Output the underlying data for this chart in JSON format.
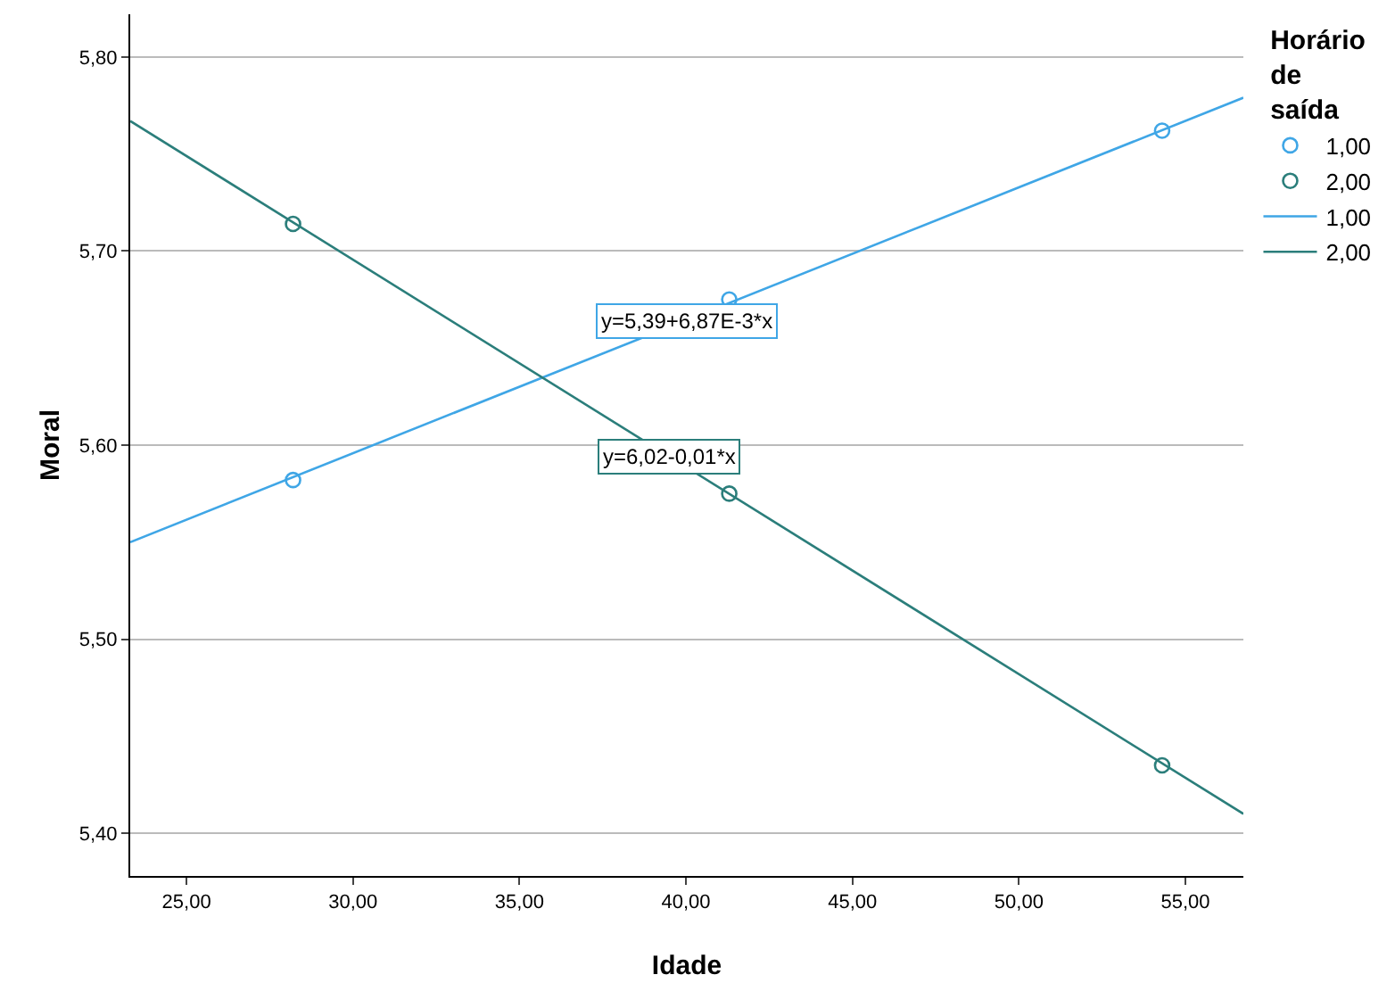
{
  "chart_data": {
    "type": "scatter",
    "xlabel": "Idade",
    "ylabel": "Moral",
    "legend_title": "Horário de saída",
    "xlim": [
      23.31,
      56.74
    ],
    "ylim": [
      5.378,
      5.822
    ],
    "xticks": [
      {
        "value": 25,
        "label": "25,00"
      },
      {
        "value": 30,
        "label": "30,00"
      },
      {
        "value": 35,
        "label": "35,00"
      },
      {
        "value": 40,
        "label": "40,00"
      },
      {
        "value": 45,
        "label": "45,00"
      },
      {
        "value": 50,
        "label": "50,00"
      },
      {
        "value": 55,
        "label": "55,00"
      }
    ],
    "yticks": [
      {
        "value": 5.4,
        "label": "5,40"
      },
      {
        "value": 5.5,
        "label": "5,50"
      },
      {
        "value": 5.6,
        "label": "5,60"
      },
      {
        "value": 5.7,
        "label": "5,70"
      },
      {
        "value": 5.8,
        "label": "5,80"
      }
    ],
    "grid": "y",
    "legend": "top right",
    "series": [
      {
        "name": "1,00",
        "type": "scatter",
        "marker": "circle",
        "color": "#3fa6e6",
        "x": [
          28.2,
          41.3,
          54.3
        ],
        "values": [
          5.582,
          5.675,
          5.762
        ]
      },
      {
        "name": "2,00",
        "type": "scatter",
        "marker": "circle",
        "color": "#2b7e7b",
        "x": [
          28.2,
          41.3,
          54.3
        ],
        "values": [
          5.714,
          5.575,
          5.435
        ]
      },
      {
        "name": "1,00",
        "type": "line",
        "marker": "none",
        "line_style": "solid",
        "color": "#3fa6e6",
        "x": [
          23.31,
          56.74
        ],
        "values": [
          5.55,
          5.779
        ]
      },
      {
        "name": "2,00",
        "type": "line",
        "marker": "none",
        "line_style": "solid",
        "color": "#2b7e7b",
        "x": [
          23.31,
          56.74
        ],
        "values": [
          5.767,
          5.41
        ]
      }
    ],
    "annotations": [
      {
        "text": "y=5,39+6,87E-3*x",
        "x": 40.0,
        "y": 5.664
      },
      {
        "text": "y=6,02-0,01*x",
        "x": 39.5,
        "y": 5.594
      }
    ]
  }
}
